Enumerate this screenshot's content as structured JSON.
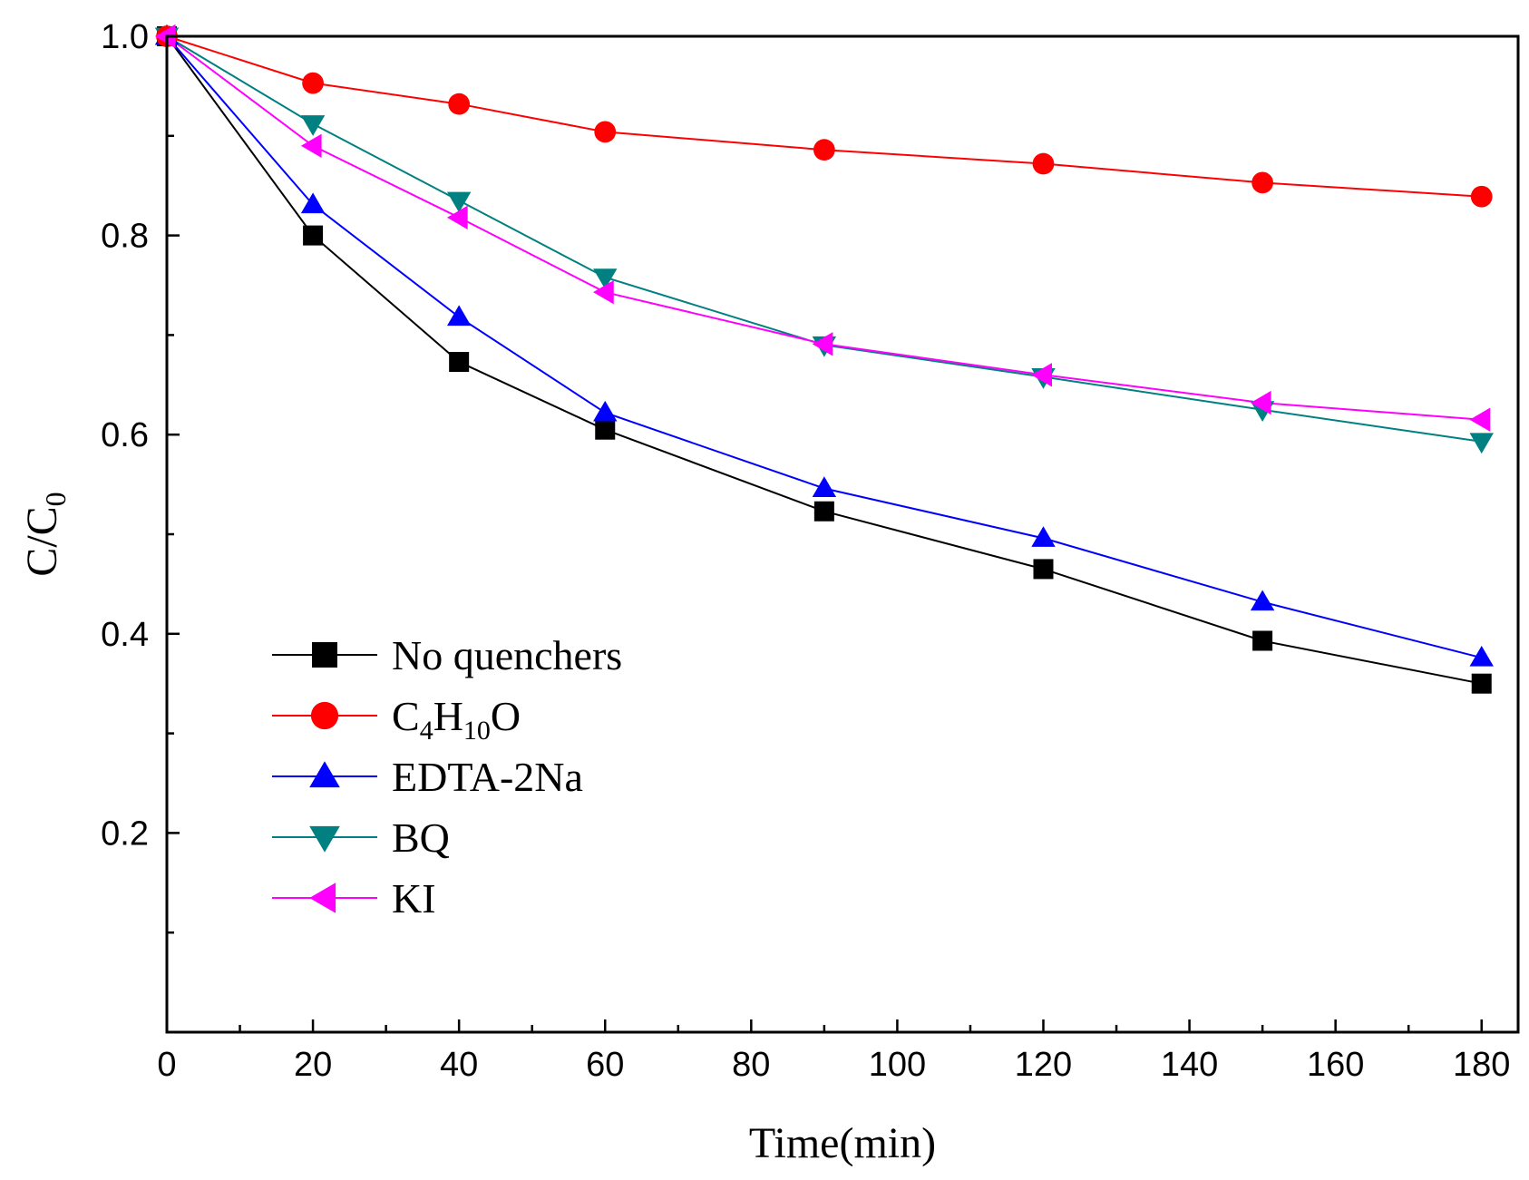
{
  "chart_data": {
    "type": "line",
    "title": "",
    "xlabel": "Time(min)",
    "ylabel": "C/C0",
    "ylabel_main": "C/C",
    "ylabel_sub": "0",
    "xlim": [
      0,
      185
    ],
    "ylim": [
      0,
      1.0
    ],
    "x_ticks": [
      0,
      20,
      40,
      60,
      80,
      100,
      120,
      140,
      160,
      180
    ],
    "x_tick_labels": [
      "0",
      "20",
      "40",
      "60",
      "80",
      "100",
      "120",
      "140",
      "160",
      "180"
    ],
    "x_minor_ticks": [
      10,
      30,
      50,
      70,
      90,
      110,
      130,
      150,
      170
    ],
    "y_ticks": [
      0.2,
      0.4,
      0.6,
      0.8,
      1.0
    ],
    "y_tick_labels": [
      "0.2",
      "0.4",
      "0.6",
      "0.8",
      "1.0"
    ],
    "y_minor_ticks": [
      0.1,
      0.3,
      0.5,
      0.7,
      0.9
    ],
    "grid": false,
    "legend_position": "lower-left",
    "x": [
      0,
      20,
      40,
      60,
      90,
      120,
      150,
      180
    ],
    "series": [
      {
        "name": "No quenchers",
        "label_parts": [
          [
            "No quenchers",
            false
          ]
        ],
        "color": "#000000",
        "marker": "square",
        "values": [
          1.0,
          0.8,
          0.673,
          0.605,
          0.523,
          0.465,
          0.393,
          0.35
        ]
      },
      {
        "name": "C4H10O",
        "label_parts": [
          [
            "C",
            false
          ],
          [
            "4",
            true
          ],
          [
            "H",
            false
          ],
          [
            "10",
            true
          ],
          [
            "O",
            false
          ]
        ],
        "color": "#ff0000",
        "marker": "circle",
        "values": [
          1.0,
          0.953,
          0.932,
          0.904,
          0.886,
          0.872,
          0.853,
          0.839
        ]
      },
      {
        "name": "EDTA-2Na",
        "label_parts": [
          [
            "EDTA-2Na",
            false
          ]
        ],
        "color": "#0000ff",
        "marker": "triangle-up",
        "values": [
          1.0,
          0.831,
          0.718,
          0.622,
          0.546,
          0.496,
          0.432,
          0.376
        ]
      },
      {
        "name": "BQ",
        "label_parts": [
          [
            "BQ",
            false
          ]
        ],
        "color": "#008080",
        "marker": "triangle-down",
        "values": [
          1.0,
          0.912,
          0.835,
          0.758,
          0.69,
          0.658,
          0.625,
          0.593
        ]
      },
      {
        "name": "KI",
        "label_parts": [
          [
            "KI",
            false
          ]
        ],
        "color": "#ff00ff",
        "marker": "triangle-left",
        "values": [
          1.0,
          0.89,
          0.818,
          0.743,
          0.691,
          0.66,
          0.632,
          0.615
        ]
      }
    ]
  }
}
